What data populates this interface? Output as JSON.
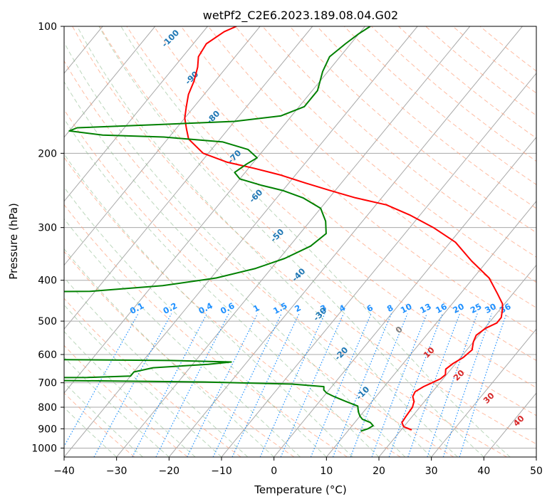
{
  "chart_data": {
    "type": "line",
    "subtype": "skew-T log-p diagram",
    "title": "wetPf2_C2E6.2023.189.08.04.G02",
    "xlabel": "Temperature (°C)",
    "ylabel": "Pressure (hPa)",
    "xlim": [
      -40,
      50
    ],
    "ylim": [
      1050,
      100
    ],
    "y_scale": "log",
    "grid": true,
    "x_ticks": [
      -40,
      -30,
      -20,
      -10,
      0,
      10,
      20,
      30,
      40,
      50
    ],
    "y_ticks": [
      100,
      200,
      300,
      400,
      500,
      600,
      700,
      800,
      900,
      1000
    ],
    "series": [
      {
        "name": "",
        "color": "#ff0000",
        "points": [
          [
            22,
            905
          ],
          [
            20,
            890
          ],
          [
            19,
            870
          ],
          [
            18.8,
            840
          ],
          [
            18.6,
            800
          ],
          [
            18,
            775
          ],
          [
            17,
            755
          ],
          [
            16.7,
            735
          ],
          [
            17.5,
            715
          ],
          [
            18.5,
            700
          ],
          [
            19.5,
            685
          ],
          [
            19.8,
            670
          ],
          [
            19,
            650
          ],
          [
            19.5,
            630
          ],
          [
            20.5,
            610
          ],
          [
            21,
            585
          ],
          [
            20,
            560
          ],
          [
            19.5,
            540
          ],
          [
            20.2,
            520
          ],
          [
            21.5,
            505
          ],
          [
            21.5,
            490
          ],
          [
            20.5,
            470
          ],
          [
            19.6,
            455
          ],
          [
            17,
            430
          ],
          [
            13,
            395
          ],
          [
            7,
            360
          ],
          [
            1,
            325
          ],
          [
            -5.5,
            300
          ],
          [
            -12,
            280
          ],
          [
            -18,
            265
          ],
          [
            -25,
            255
          ],
          [
            -31,
            245
          ],
          [
            -37,
            235
          ],
          [
            -43,
            225
          ],
          [
            -49,
            217
          ],
          [
            -55,
            210
          ],
          [
            -61,
            200
          ],
          [
            -66,
            185
          ],
          [
            -68,
            175
          ],
          [
            -70,
            165
          ],
          [
            -71.5,
            155
          ],
          [
            -73,
            145
          ],
          [
            -74,
            135
          ],
          [
            -75.5,
            125
          ],
          [
            -77,
            118
          ],
          [
            -77.5,
            110
          ],
          [
            -76,
            103
          ],
          [
            -74.5,
            100
          ]
        ]
      },
      {
        "name": "",
        "color": "#008000",
        "points": [
          [
            12.5,
            912
          ],
          [
            13.5,
            900
          ],
          [
            14,
            885
          ],
          [
            13,
            870
          ],
          [
            11,
            855
          ],
          [
            10,
            840
          ],
          [
            9,
            820
          ],
          [
            8,
            795
          ],
          [
            5,
            775
          ],
          [
            2,
            755
          ],
          [
            0,
            740
          ],
          [
            -1,
            728
          ],
          [
            -1.5,
            715
          ],
          [
            -8,
            705
          ],
          [
            -25,
            697
          ],
          [
            -50,
            692
          ],
          [
            -80,
            688
          ],
          [
            -100,
            686
          ],
          [
            -75,
            683
          ],
          [
            -48,
            680
          ],
          [
            -40,
            675
          ],
          [
            -40,
            660
          ],
          [
            -37,
            645
          ],
          [
            -27,
            633
          ],
          [
            -23,
            625
          ],
          [
            -35,
            620
          ],
          [
            -70,
            615
          ],
          [
            -100,
            613
          ],
          [
            -100,
            530
          ],
          [
            -75,
            526
          ],
          [
            -79,
            520
          ],
          [
            -100,
            516
          ],
          [
            -100,
            428
          ],
          [
            -61,
            425
          ],
          [
            -48,
            412
          ],
          [
            -39,
            395
          ],
          [
            -33,
            375
          ],
          [
            -29,
            355
          ],
          [
            -26,
            332
          ],
          [
            -25,
            310
          ],
          [
            -27,
            290
          ],
          [
            -30,
            270
          ],
          [
            -35,
            255
          ],
          [
            -40,
            245
          ],
          [
            -45,
            238
          ],
          [
            -50,
            230
          ],
          [
            -52,
            222
          ],
          [
            -51,
            212
          ],
          [
            -50,
            205
          ],
          [
            -53,
            196
          ],
          [
            -59,
            188
          ],
          [
            -71,
            183
          ],
          [
            -83,
            181
          ],
          [
            -90,
            177
          ],
          [
            -89,
            174
          ],
          [
            -74,
            171
          ],
          [
            -60,
            168
          ],
          [
            -52,
            163
          ],
          [
            -49,
            155
          ],
          [
            -49,
            142
          ],
          [
            -51,
            128
          ],
          [
            -52,
            118
          ],
          [
            -51,
            110
          ],
          [
            -50,
            104
          ],
          [
            -49,
            100
          ]
        ]
      }
    ],
    "dry_adiabat_labels": [
      "-100",
      "-90",
      "-80",
      "-70",
      "-60",
      "-50",
      "-40",
      "-30",
      "-20",
      "-10"
    ],
    "moist_adiabat_labels": [
      "0",
      "10",
      "20",
      "30",
      "40"
    ],
    "mixing_ratio_labels": [
      "0.1",
      "0.2",
      "0.4",
      "0.6",
      "1",
      "1.5",
      "2",
      "3",
      "4",
      "6",
      "8",
      "10",
      "13",
      "16",
      "20",
      "25",
      "30",
      "36"
    ],
    "colors": {
      "temperature": "#ff0000",
      "dewpoint": "#008000",
      "isotherm": "#a9a9a9",
      "dry_adiabat": "#ffa07a",
      "moist_adiabat": "#8fbc8f",
      "mixing_ratio": "#1e90ff",
      "dry_label": "#1f77b4",
      "moist_label": "#d62728",
      "zero_label": "#7f7f7f",
      "extra_curves": "#deb887"
    }
  }
}
